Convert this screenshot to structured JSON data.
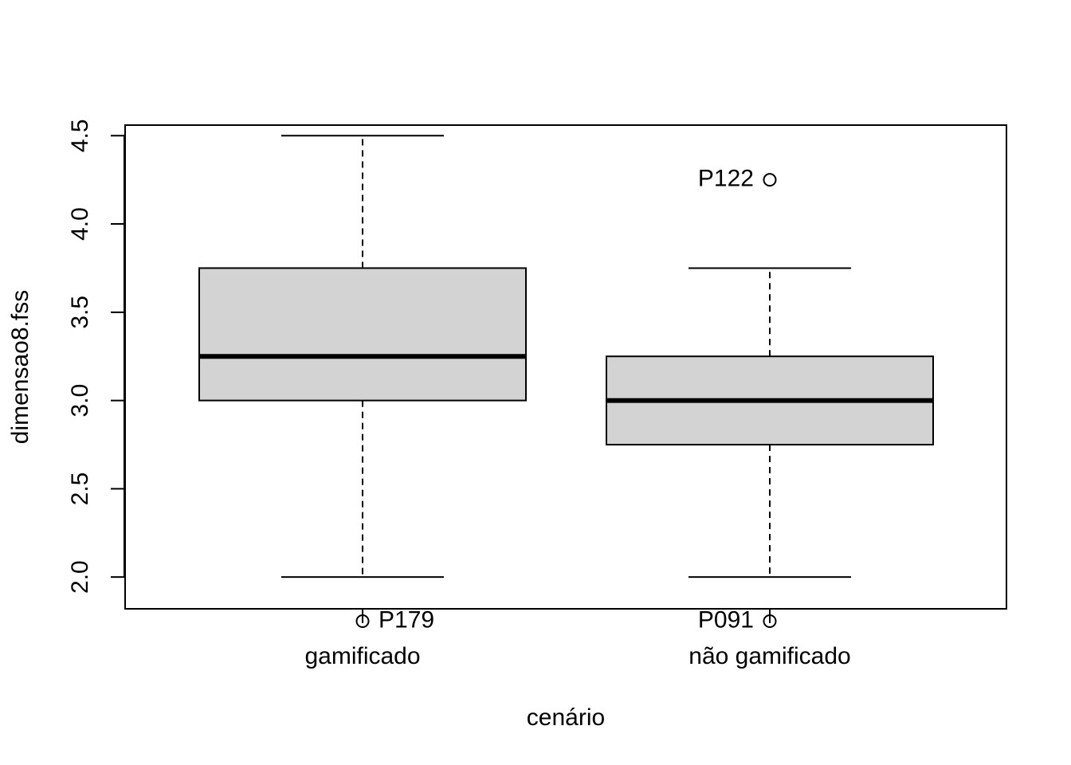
{
  "chart_data": {
    "type": "boxplot",
    "title": "",
    "xlabel": "cenário",
    "ylabel": "dimensao8.fss",
    "ylim": [
      1.82,
      4.56
    ],
    "yticks": [
      "2.0",
      "2.5",
      "3.0",
      "3.5",
      "4.0",
      "4.5"
    ],
    "categories": [
      "gamificado",
      "não gamificado"
    ],
    "boxes": [
      {
        "category": "gamificado",
        "whisker_low": 2.0,
        "q1": 3.0,
        "median": 3.25,
        "q3": 3.75,
        "whisker_high": 4.5,
        "outliers": [
          {
            "label": "P179",
            "value": 1.75,
            "label_side": "right"
          }
        ]
      },
      {
        "category": "não gamificado",
        "whisker_low": 2.0,
        "q1": 2.75,
        "median": 3.0,
        "q3": 3.25,
        "whisker_high": 3.75,
        "outliers": [
          {
            "label": "P122",
            "value": 4.25,
            "label_side": "left"
          },
          {
            "label": "P091",
            "value": 1.75,
            "label_side": "left"
          }
        ]
      }
    ],
    "grid": false,
    "legend": "none",
    "colors": {
      "box_fill": "#d3d3d3",
      "line": "#000000"
    }
  }
}
